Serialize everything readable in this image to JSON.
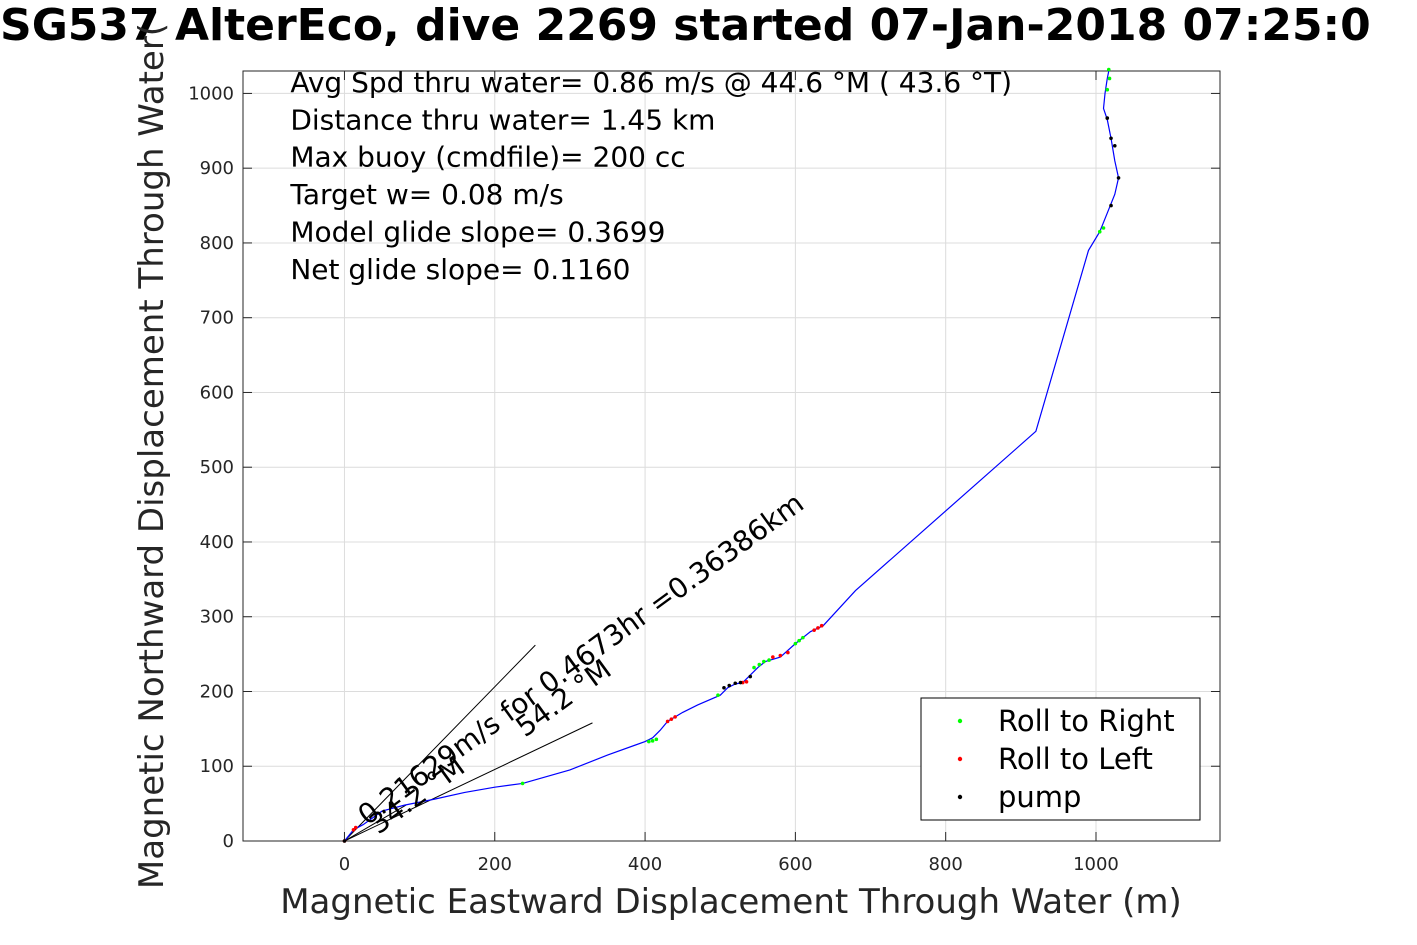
{
  "chart_data": {
    "type": "line",
    "title": "SG537 AlterEco, dive 2269 started 07-Jan-2018 07:25:0",
    "xlabel": "Magnetic Eastward Displacement Through Water (m)",
    "ylabel": "Magnetic Northward Displacement Through Water(",
    "xlim": [
      -135,
      1165
    ],
    "ylim": [
      0,
      1030
    ],
    "xticks": [
      0,
      200,
      400,
      600,
      800,
      1000
    ],
    "yticks": [
      0,
      100,
      200,
      300,
      400,
      500,
      600,
      700,
      800,
      900,
      1000
    ],
    "grid": true,
    "legend_position": "bottom-right",
    "track_color": "#0000ff",
    "track": {
      "x": [
        0,
        12,
        25,
        50,
        80,
        120,
        160,
        200,
        237,
        300,
        350,
        400,
        410,
        420,
        430,
        440,
        450,
        470,
        500,
        510,
        520,
        530,
        540,
        550,
        560,
        580,
        600,
        620,
        637,
        680,
        920,
        990,
        1005,
        1015,
        1025,
        1030,
        1025,
        1020,
        1015,
        1010,
        1012,
        1015,
        1017
      ],
      "y": [
        0,
        15,
        22,
        40,
        48,
        56,
        65,
        72,
        77,
        95,
        115,
        133,
        138,
        148,
        160,
        166,
        172,
        182,
        195,
        205,
        210,
        212,
        222,
        232,
        240,
        246,
        264,
        280,
        288,
        335,
        548,
        790,
        815,
        840,
        865,
        887,
        910,
        940,
        965,
        980,
        1000,
        1020,
        1030
      ]
    },
    "series": [
      {
        "name": "Roll to Right",
        "color": "#00ff00",
        "x": [
          237,
          405,
          410,
          415,
          497,
          545,
          552,
          558,
          565,
          600,
          605,
          610,
          1005,
          1010,
          1017,
          1018,
          1015
        ],
        "y": [
          77,
          133,
          134,
          136,
          195,
          232,
          236,
          240,
          242,
          264,
          268,
          272,
          815,
          820,
          1032,
          1020,
          1005
        ]
      },
      {
        "name": "Roll to Left",
        "color": "#ff0000",
        "x": [
          0,
          12,
          15,
          430,
          435,
          440,
          530,
          535,
          570,
          580,
          590,
          625,
          630,
          635
        ],
        "y": [
          0,
          15,
          18,
          160,
          163,
          166,
          212,
          213,
          246,
          248,
          252,
          282,
          285,
          288
        ]
      },
      {
        "name": "pump",
        "color": "#000000",
        "x": [
          0,
          505,
          512,
          520,
          527,
          540,
          1020,
          1025,
          1030,
          1020,
          1015
        ],
        "y": [
          0,
          205,
          208,
          211,
          212,
          220,
          850,
          930,
          887,
          940,
          967
        ]
      }
    ],
    "reference_lines": [
      {
        "x": [
          0,
          254
        ],
        "y": [
          0,
          262
        ]
      },
      {
        "x": [
          0,
          330
        ],
        "y": [
          0,
          158
        ]
      },
      {
        "x": [
          0,
          82
        ],
        "y": [
          0,
          48
        ]
      }
    ],
    "annotations": [
      {
        "text": "Avg Spd thru water=  0.86 m/s @  44.6 °M ( 43.6 °T)",
        "x": -72,
        "y": 1002
      },
      {
        "text": "Distance thru water=  1.45 km",
        "x": -72,
        "y": 952
      },
      {
        "text": "Max buoy (cmdfile)= 200 cc",
        "x": -72,
        "y": 902
      },
      {
        "text": "Target w= 0.08 m/s",
        "x": -72,
        "y": 852
      },
      {
        "text": "Model glide slope= 0.3699",
        "x": -72,
        "y": 802
      },
      {
        "text": "Net glide slope= 0.1160",
        "x": -72,
        "y": 752
      }
    ],
    "rotated_labels": [
      {
        "text": "0.21629m/s for 0.4673hr =0.36386km",
        "x": 30,
        "y": 20,
        "angle": -36
      },
      {
        "text": "54.2 °M",
        "x": 240,
        "y": 138,
        "angle": -36
      },
      {
        "text": "34.2 °M",
        "x": 45,
        "y": 8,
        "angle": -36
      }
    ]
  }
}
